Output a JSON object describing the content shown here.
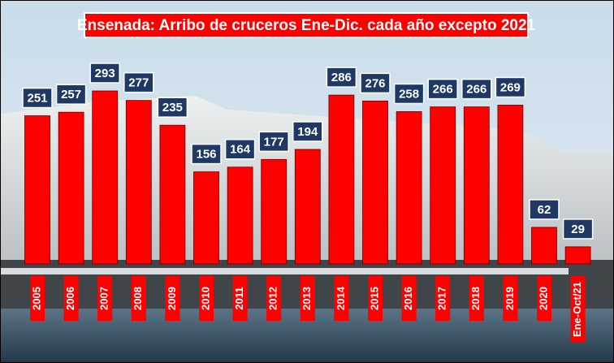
{
  "chart_data": {
    "type": "bar",
    "title": "Ensenada: Arribo de cruceros Ene-Dic. cada año excepto 2021",
    "categories": [
      "2005",
      "2006",
      "2007",
      "2008",
      "2009",
      "2010",
      "2011",
      "2012",
      "2013",
      "2014",
      "2015",
      "2016",
      "2017",
      "2018",
      "2019",
      "2020",
      "Ene-Oct/21"
    ],
    "values": [
      251,
      257,
      293,
      277,
      235,
      156,
      164,
      177,
      194,
      286,
      276,
      258,
      266,
      266,
      269,
      62,
      29
    ],
    "color": "#ff0000"
  }
}
